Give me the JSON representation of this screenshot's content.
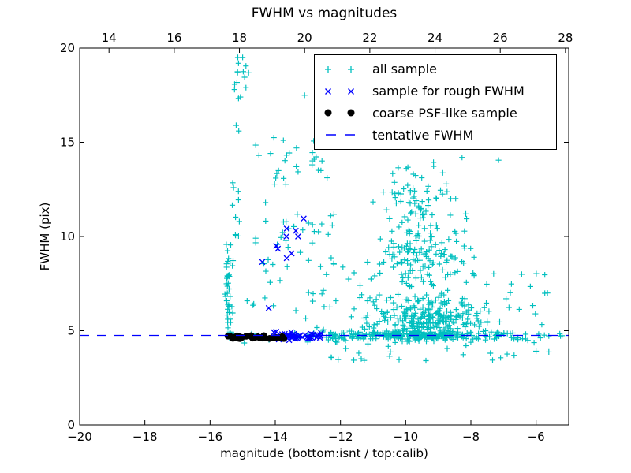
{
  "figure": {
    "title": "FWHM vs magnitudes",
    "background": "#ffffff"
  },
  "axes": {
    "xlabel": "magnitude (bottom:isnt / top:calib)",
    "ylabel": "FWHM (pix)",
    "xlim": [
      -20,
      -5
    ],
    "ylim": [
      0,
      20
    ],
    "x_ticks_bottom": [
      -20,
      -18,
      -16,
      -14,
      -12,
      -10,
      -8,
      -6
    ],
    "x_ticks_top": [
      14,
      16,
      18,
      20,
      22,
      24,
      26,
      28
    ],
    "y_ticks": [
      0,
      5,
      10,
      15,
      20
    ],
    "top_axis_offset_mag": 33.1,
    "frame_color": "#000000",
    "tick_label_color": "#000000"
  },
  "chart_data": {
    "type": "scatter",
    "title": "FWHM vs magnitudes",
    "xlabel": "magnitude (bottom:isnt / top:calib)",
    "ylabel": "FWHM (pix)",
    "xlim": [
      -20,
      -5
    ],
    "ylim": [
      0,
      20
    ],
    "grid": false,
    "legend_position": "upper right inside",
    "tentative_fwhm_value": 4.75,
    "series": [
      {
        "name": "all sample",
        "marker": "+",
        "color": "#00bfbf",
        "points": [
          [
            -15.2,
            15.9
          ],
          [
            -15.12,
            15.6
          ],
          [
            -14.6,
            14.85
          ],
          [
            -14.5,
            14.3
          ],
          [
            -13.1,
            17.5
          ],
          [
            -7.15,
            14.05
          ],
          [
            -5.65,
            7.0
          ],
          [
            -11.45,
            15.7
          ],
          [
            -12.6,
            13.5
          ],
          [
            -12.3,
            11.1
          ],
          [
            -12.25,
            10.6
          ],
          [
            -14.95,
            4.35
          ],
          [
            -13.0,
            4.4
          ],
          [
            -13.75,
            15.1
          ],
          [
            -13.35,
            14.7
          ],
          [
            -13.9,
            13.5
          ],
          [
            -15.15,
            19.5
          ],
          [
            -14.9,
            19.05
          ],
          [
            -15.16,
            18.75
          ],
          [
            -14.94,
            18.45
          ],
          [
            -15.25,
            17.8
          ],
          [
            -14.9,
            17.9
          ],
          [
            -15.07,
            17.4
          ]
        ],
        "clusters": [
          {
            "n": 42,
            "x": {
              "g": [
                -15.42,
                0.07
              ],
              "c": [
                -15.55,
                -15.25
              ]
            },
            "y": {
              "g": [
                7.0,
                1.3
              ],
              "c": [
                4.6,
                9.7
              ]
            }
          },
          {
            "n": 10,
            "x": {
              "u": [
                -15.5,
                -15.1
              ]
            },
            "y": {
              "u": [
                9.8,
                13.3
              ]
            }
          },
          {
            "n": 30,
            "x": {
              "g": [
                -13.5,
                0.6
              ],
              "c": [
                -14.6,
                -12.2
              ]
            },
            "y": {
              "g": [
                10.0,
                0.95
              ],
              "c": [
                8.4,
                11.8
              ]
            }
          },
          {
            "n": 22,
            "x": {
              "u": [
                -14.35,
                -12.4
              ]
            },
            "y": {
              "u": [
                12.7,
                15.35
              ]
            }
          },
          {
            "n": 28,
            "x": {
              "u": [
                -14.9,
                -11.4
              ]
            },
            "y": {
              "u": [
                5.6,
                8.6
              ]
            }
          },
          {
            "n": 60,
            "x": {
              "g": [
                -9.55,
                0.6
              ],
              "c": [
                -11.0,
                -8.0
              ]
            },
            "y": {
              "g": [
                12.2,
                0.9
              ],
              "c": [
                10.6,
                14.2
              ]
            }
          },
          {
            "n": 150,
            "x": {
              "g": [
                -9.45,
                0.7
              ],
              "c": [
                -11.3,
                -7.9
              ]
            },
            "y": {
              "g": [
                9.0,
                1.1
              ],
              "c": [
                6.9,
                11.2
              ]
            }
          },
          {
            "n": 260,
            "x": {
              "g": [
                -9.4,
                0.8
              ],
              "c": [
                -11.4,
                -7.5
              ]
            },
            "y": {
              "g": [
                5.7,
                0.6
              ],
              "c": [
                4.8,
                7.4
              ]
            }
          },
          {
            "n": 220,
            "x": {
              "g": [
                -9.5,
                1.05
              ],
              "c": [
                -11.6,
                -7.0
              ]
            },
            "y": {
              "g": [
                4.75,
                0.13
              ],
              "c": [
                4.3,
                5.2
              ]
            }
          },
          {
            "n": 30,
            "x": {
              "u": [
                -7.6,
                -5.2
              ]
            },
            "y": {
              "g": [
                4.75,
                0.12
              ],
              "c": [
                4.4,
                5.1
              ]
            }
          },
          {
            "n": 60,
            "x": {
              "u": [
                -12.95,
                -11.2
              ]
            },
            "y": {
              "g": [
                4.75,
                0.15
              ],
              "c": [
                4.3,
                5.2
              ]
            }
          },
          {
            "n": 25,
            "x": {
              "u": [
                -15.45,
                -12.95
              ]
            },
            "y": {
              "g": [
                4.72,
                0.09
              ],
              "c": [
                4.45,
                5.0
              ]
            }
          },
          {
            "n": 30,
            "x": {
              "u": [
                -12.3,
                -5.5
              ]
            },
            "y": {
              "u": [
                3.35,
                4.5
              ]
            }
          },
          {
            "n": 22,
            "x": {
              "u": [
                -8.4,
                -5.7
              ]
            },
            "y": {
              "u": [
                5.1,
                8.1
              ]
            }
          },
          {
            "n": 8,
            "x": {
              "u": [
                -15.25,
                -14.8
              ]
            },
            "y": {
              "u": [
                17.3,
                19.6
              ]
            }
          }
        ]
      },
      {
        "name": "sample for rough FWHM",
        "marker": "x",
        "color": "#0000ff",
        "points": [
          [
            -13.13,
            10.95
          ],
          [
            -13.65,
            10.42
          ],
          [
            -13.37,
            10.3
          ],
          [
            -13.66,
            10.0
          ],
          [
            -13.3,
            10.0
          ],
          [
            -13.97,
            9.5
          ],
          [
            -13.92,
            9.35
          ],
          [
            -13.5,
            9.1
          ],
          [
            -13.65,
            8.85
          ],
          [
            -14.4,
            8.65
          ],
          [
            -14.2,
            6.2
          ]
        ],
        "clusters": [
          {
            "n": 48,
            "x": {
              "u": [
                -14.05,
                -12.55
              ]
            },
            "y": {
              "g": [
                4.72,
                0.1
              ],
              "c": [
                4.5,
                4.95
              ]
            }
          }
        ]
      },
      {
        "name": "coarse PSF-like sample",
        "marker": "dot",
        "color": "#000000",
        "points": [],
        "clusters": [
          {
            "n": 30,
            "x": {
              "u": [
                -15.45,
                -13.7
              ]
            },
            "y": {
              "u": [
                4.58,
                4.74
              ]
            }
          }
        ]
      },
      {
        "name": "tentative FWHM",
        "marker": "dashed-line",
        "style": "hline_dashed",
        "color": "#0000ff",
        "y": 4.75
      }
    ]
  }
}
